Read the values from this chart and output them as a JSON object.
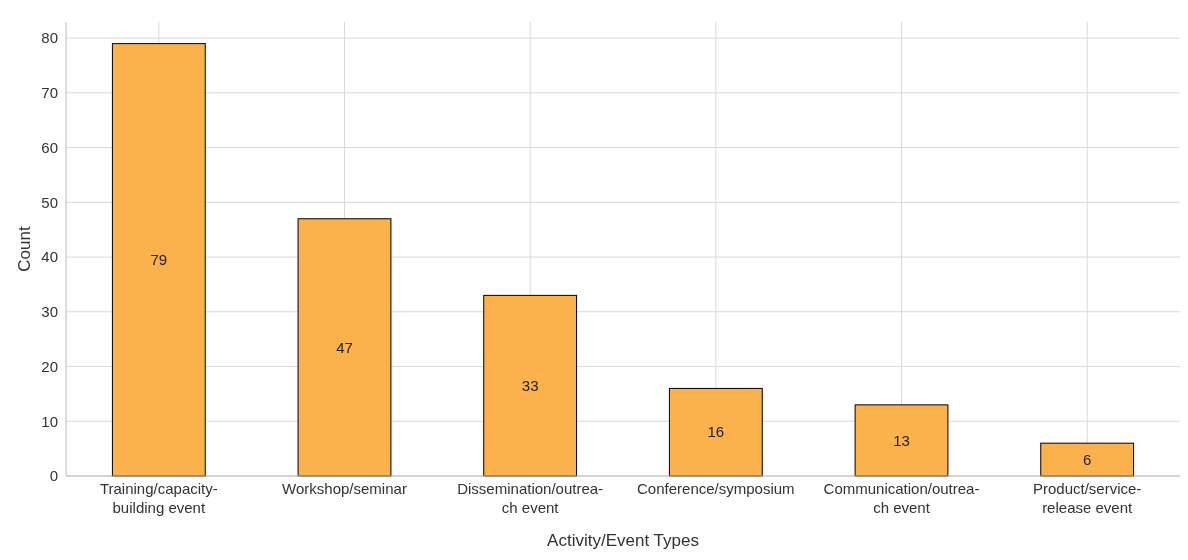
{
  "chart_data": {
    "type": "bar",
    "xlabel": "Activity/Event Types",
    "ylabel": "Count",
    "categories": [
      "Training/capacity-\nbuilding event",
      "Workshop/seminar",
      "Dissemination/outrea-\nch event",
      "Conference/symposium",
      "Communication/outrea-\nch event",
      "Product/service-\nrelease event"
    ],
    "values": [
      79,
      47,
      33,
      16,
      13,
      6
    ],
    "color": "#fbb24c",
    "ylim": [
      0,
      82.95
    ],
    "yticks": [
      0,
      10,
      20,
      30,
      40,
      50,
      60,
      70,
      80
    ],
    "grid": true,
    "data_labels": true
  }
}
